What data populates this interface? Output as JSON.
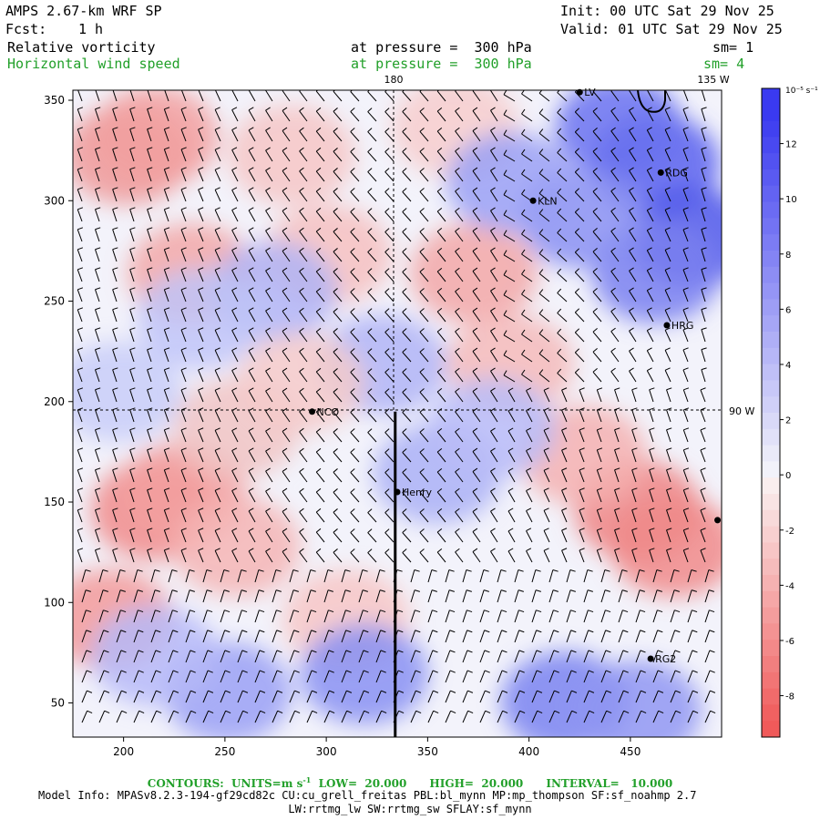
{
  "header": {
    "model": "AMPS 2.67-km WRF SP",
    "init": "Init: 00 UTC Sat 29 Nov 25",
    "fcst_label": "Fcst:",
    "fcst_value": "1 h",
    "valid": "Valid: 01 UTC Sat 29 Nov 25"
  },
  "fields": [
    {
      "name": "Relative vorticity",
      "level": "at pressure =  300 hPa",
      "sm": "sm= 1",
      "color": "#000000"
    },
    {
      "name": "Horizontal wind speed",
      "level": "at pressure =  300 hPa",
      "sm": "sm= 4",
      "color": "#22a02a"
    }
  ],
  "map": {
    "x_range": [
      175,
      495
    ],
    "y_range": [
      33,
      355
    ],
    "x_ticks": [
      "200",
      "250",
      "300",
      "350",
      "400",
      "450"
    ],
    "y_ticks": [
      "50",
      "100",
      "150",
      "200",
      "250",
      "300",
      "350"
    ],
    "meridian_180": "180",
    "meridian_135": "135 W",
    "parallel_90w": "90 W",
    "stations": [
      {
        "label": "LV",
        "x": 425,
        "y": 354
      },
      {
        "label": "RDG",
        "x": 465,
        "y": 314
      },
      {
        "label": "KLN",
        "x": 402,
        "y": 300
      },
      {
        "label": "HRG",
        "x": 468,
        "y": 238
      },
      {
        "label": "NCO",
        "x": 293,
        "y": 195
      },
      {
        "label": "Henry",
        "x": 335,
        "y": 155
      },
      {
        "label": "RG2",
        "x": 460,
        "y": 72
      },
      {
        "label": "",
        "x": 493,
        "y": 141
      }
    ],
    "cross_section_line": {
      "x": 334,
      "y_from": 195,
      "y_to": 33
    }
  },
  "colorbar": {
    "unit_label": "10⁻⁵ s⁻¹",
    "ticks": [
      "12",
      "10",
      "8",
      "6",
      "4",
      "2",
      "0",
      "-2",
      "-4",
      "-6",
      "-8"
    ],
    "tick_values": [
      12,
      10,
      8,
      6,
      4,
      2,
      0,
      -2,
      -4,
      -6,
      -8
    ],
    "range": [
      -9.5,
      14
    ],
    "positive_color": "#3a3af0",
    "negative_color": "#f05a5a"
  },
  "footer": {
    "contours": "CONTOURS:  UNITS=m s",
    "contours_unit_exp": "-1",
    "contours_rest": "  LOW=  20.000      HIGH=  20.000      INTERVAL=   10.000",
    "model_info": "Model Info: MPASv8.2.3-194-gf29cd82c CU:cu_grell_freitas PBL:bl_mynn MP:mp_thompson SF:sf_noahmp 2.7",
    "model_info2": "LW:rrtmg_lw SW:rrtmg_sw SFLAY:sf_mynn"
  }
}
